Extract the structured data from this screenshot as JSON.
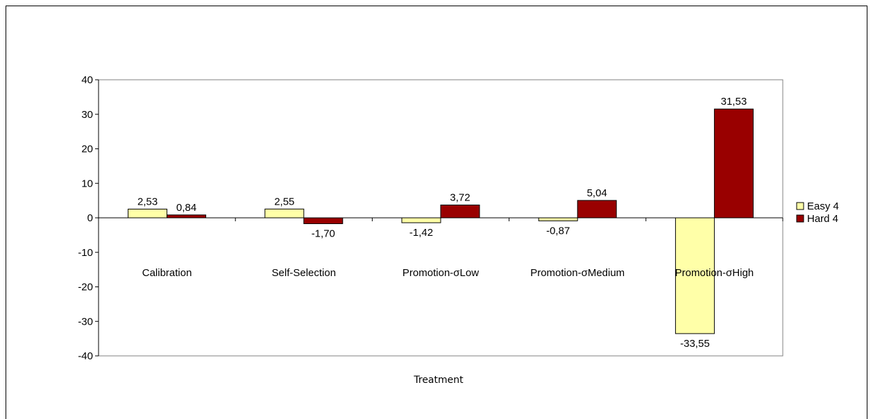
{
  "chart_data": {
    "type": "bar",
    "categories": [
      "Calibration",
      "Self-Selection",
      "Promotion-σLow",
      "Promotion-σMedium",
      "Promotion-σHigh"
    ],
    "series": [
      {
        "name": "Easy 4",
        "color": "#ffffa8",
        "values": [
          2.53,
          2.55,
          -1.42,
          -0.87,
          -33.55
        ],
        "labels": [
          "2,53",
          "2,55",
          "-1,42",
          "-0,87",
          "-33,55"
        ]
      },
      {
        "name": "Hard 4",
        "color": "#990000",
        "values": [
          0.84,
          -1.7,
          3.72,
          5.04,
          31.53
        ],
        "labels": [
          "0,84",
          "-1,70",
          "3,72",
          "5,04",
          "31,53"
        ]
      }
    ],
    "xlabel": "Treatment",
    "ylabel": "",
    "ylim": [
      -40,
      40
    ],
    "yticks": [
      40,
      30,
      20,
      10,
      0,
      -10,
      -20,
      -30,
      -40
    ],
    "grid": false,
    "legend_position": "right"
  }
}
